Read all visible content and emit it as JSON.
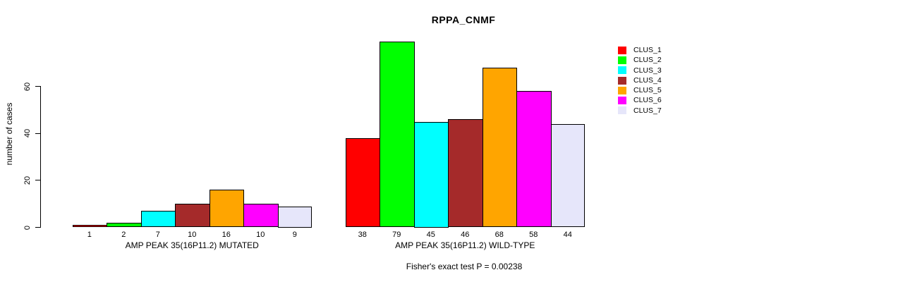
{
  "chart_data": {
    "type": "bar",
    "title": "RPPA_CNMF",
    "ylabel": "number of cases",
    "yticks": [
      0,
      20,
      40,
      60
    ],
    "ylim": [
      0,
      79
    ],
    "grid": false,
    "legend_position": "right",
    "bar_border_color": "#000000",
    "clusters": [
      {
        "name": "CLUS_1",
        "color": "#FF0000"
      },
      {
        "name": "CLUS_2",
        "color": "#00FF00"
      },
      {
        "name": "CLUS_3",
        "color": "#00FFFF"
      },
      {
        "name": "CLUS_4",
        "color": "#A52A2A"
      },
      {
        "name": "CLUS_5",
        "color": "#FFA500"
      },
      {
        "name": "CLUS_6",
        "color": "#FF00FF"
      },
      {
        "name": "CLUS_7",
        "color": "#E6E6FA"
      }
    ],
    "groups": [
      {
        "label": "AMP PEAK 35(16P11.2) MUTATED",
        "values": [
          1,
          2,
          7,
          10,
          16,
          10,
          9
        ]
      },
      {
        "label": "AMP PEAK 35(16P11.2) WILD-TYPE",
        "values": [
          38,
          79,
          45,
          46,
          68,
          58,
          44
        ]
      }
    ],
    "footer": "Fisher's exact test P = 0.00238"
  }
}
